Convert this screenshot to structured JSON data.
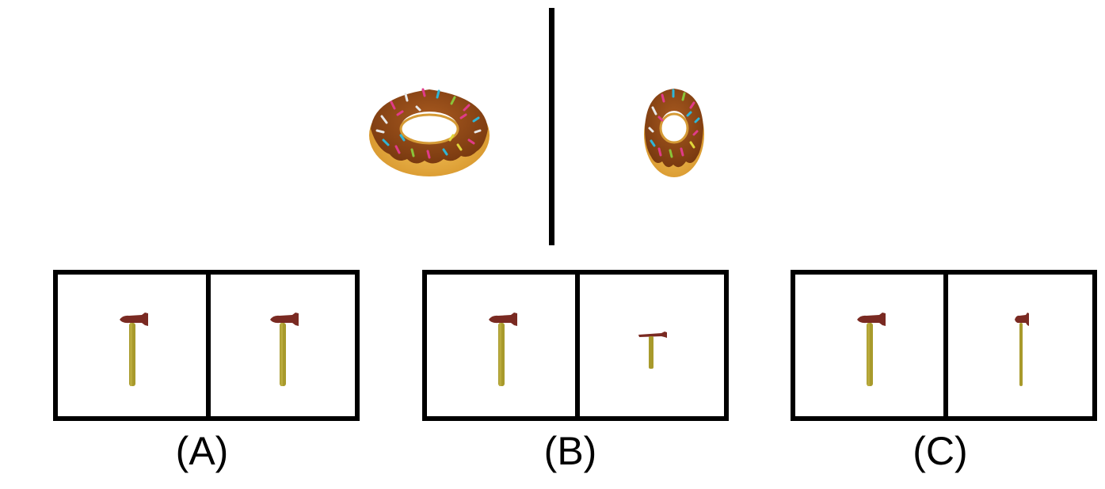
{
  "reference": {
    "left_object": "donut",
    "right_object": "donut",
    "transformation": "horizontal-squish"
  },
  "options": [
    {
      "label": "(A)",
      "left_object": "hammer",
      "right_object": "hammer",
      "right_scale_x": 1.0,
      "right_scale_y": 1.0
    },
    {
      "label": "(B)",
      "left_object": "hammer",
      "right_object": "hammer",
      "right_scale_x": 0.45,
      "right_scale_y": 0.55
    },
    {
      "label": "(C)",
      "left_object": "hammer",
      "right_object": "hammer",
      "right_scale_x": 0.45,
      "right_scale_y": 1.0
    }
  ],
  "colors": {
    "border": "#000000",
    "donut_dough": "#e0a43a",
    "donut_icing": "#8b4512",
    "hammer_head": "#7a2a22",
    "hammer_handle": "#a89a2c"
  }
}
